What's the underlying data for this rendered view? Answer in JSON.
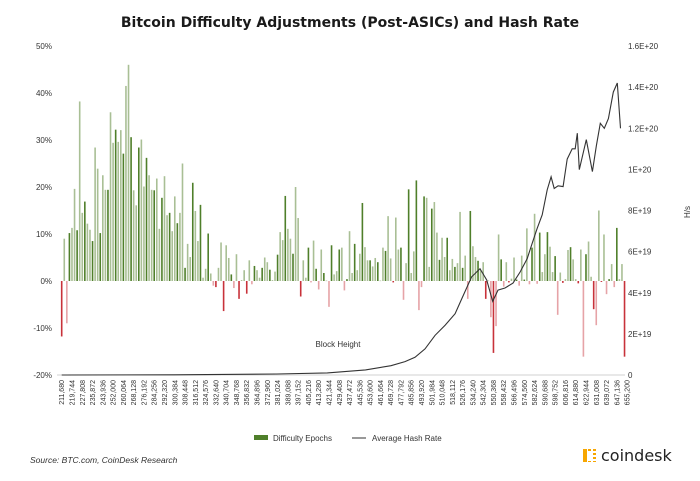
{
  "chart_data": {
    "type": "bar+line",
    "title": "Bitcoin Difficulty Adjustments (Post-ASICs) and Hash Rate",
    "xlabel": "Block Height",
    "ylabel_right": "H/s",
    "left_axis": {
      "range": [
        -20,
        50
      ],
      "unit": "%",
      "tick_labels": [
        "50%",
        "40%",
        "30%",
        "20%",
        "10%",
        "0%",
        "-10%",
        "-20%"
      ]
    },
    "right_axis": {
      "range": [
        0,
        1.6e+20
      ],
      "tick_labels": [
        "1.6E+20",
        "1.4E+20",
        "1.2E+20",
        "1E+20",
        "8E+19",
        "6E+19",
        "4E+19",
        "2E+19",
        "0"
      ]
    },
    "x_tick_labels": [
      "211,680",
      "219,744",
      "227,808",
      "235,872",
      "243,936",
      "252,000",
      "260,064",
      "268,128",
      "276,192",
      "284,256",
      "292,320",
      "300,384",
      "308,448",
      "316,512",
      "324,576",
      "332,640",
      "340,704",
      "348,768",
      "356,832",
      "364,896",
      "372,960",
      "381,024",
      "389,088",
      "397,152",
      "405,216",
      "413,280",
      "421,344",
      "429,408",
      "437,472",
      "445,536",
      "453,600",
      "461,664",
      "469,728",
      "477,792",
      "485,856",
      "493,920",
      "501,984",
      "510,048",
      "518,112",
      "526,176",
      "534,240",
      "542,304",
      "550,368",
      "558,432",
      "566,496",
      "574,560",
      "582,624",
      "590,688",
      "598,752",
      "606,816",
      "614,880",
      "622,944",
      "631,008",
      "639,072",
      "647,136",
      "655,200"
    ],
    "grid": false,
    "legend_position": "bottom",
    "colors": {
      "positive_dark": "#4f7f2a",
      "positive_light": "#a9bf95",
      "negative_dark": "#c8323a",
      "negative_light": "#e6a3a7",
      "line": "#333333"
    },
    "epoch_start_block": 211680,
    "epoch_length": 2016,
    "series": [
      {
        "name": "Difficulty Epochs",
        "type": "bar",
        "axis": "left",
        "values": [
          -11.8,
          9,
          -9,
          10.2,
          11.3,
          19.6,
          10.8,
          38.2,
          14.5,
          16.9,
          12.2,
          10.9,
          8.5,
          28.4,
          23.9,
          10.2,
          22.5,
          19.4,
          19.4,
          35.9,
          29.4,
          32.2,
          29.6,
          32.1,
          27.1,
          41.5,
          46,
          30.6,
          19.3,
          16.1,
          28.4,
          30.1,
          20.1,
          26.2,
          22.5,
          19.4,
          19.3,
          21.8,
          11.1,
          17.7,
          22.3,
          14,
          14.5,
          10.6,
          18,
          12.3,
          14.5,
          25,
          2.8,
          7.9,
          5.1,
          20.9,
          14.9,
          8.5,
          16.2,
          0.7,
          2.6,
          10.1,
          1.6,
          -1,
          -1.3,
          2.8,
          8.2,
          -6.4,
          7.6,
          4.9,
          1.4,
          -1.5,
          5.7,
          -3.8,
          0.2,
          2.3,
          -2.7,
          4.4,
          -0.7,
          3.2,
          2.3,
          0.7,
          2.8,
          5,
          4,
          2.4,
          0.2,
          2,
          5.6,
          10.4,
          8.7,
          18.1,
          11.1,
          9,
          5.8,
          20,
          13.4,
          -3.3,
          4.4,
          0.7,
          7.1,
          -0.3,
          8.6,
          2.6,
          -1.8,
          6.7,
          1.7,
          0.1,
          -5.5,
          7.6,
          1.4,
          2.1,
          6.7,
          7.1,
          -2,
          0.4,
          10.6,
          1.7,
          7.9,
          2.3,
          5.8,
          16.6,
          7.2,
          4.4,
          4.4,
          3.1,
          4.9,
          4,
          0.1,
          7.1,
          6.4,
          13.8,
          4.8,
          -0.3,
          13.5,
          6.7,
          7.1,
          -4,
          3.8,
          19.5,
          1.7,
          6.3,
          21.4,
          -6.2,
          -1.3,
          18,
          17.7,
          3,
          15.4,
          16.8,
          10.3,
          4.5,
          9.2,
          5.1,
          9.2,
          2.3,
          4.7,
          3,
          3.8,
          14.7,
          2.8,
          5.4,
          -3.8,
          14.9,
          7.4,
          5.1,
          4.3,
          2.3,
          4,
          -3.8,
          0.1,
          -7.7,
          -15.3,
          -9.6,
          9.9,
          4.6,
          -1.2,
          4,
          -0.3,
          0.5,
          5,
          0.3,
          -1,
          5.4,
          0.3,
          11.2,
          -0.7,
          7.1,
          14.3,
          -0.6,
          10.3,
          1.9,
          5.7,
          10.4,
          7.3,
          1.9,
          5.3,
          -7.2,
          1.8,
          -0.4,
          0.4,
          6.6,
          7.2,
          4.6,
          0.4,
          -0.5,
          6.7,
          -16.1,
          5.7,
          8.4,
          0.9,
          -6,
          -9.4,
          15,
          -0.2,
          9.9,
          -2.8,
          0.4,
          3.6,
          -1.3,
          11.3,
          0.4,
          3.6,
          -16.1
        ]
      },
      {
        "name": "Average Hash Rate",
        "type": "line",
        "axis": "right",
        "x": [
          211680,
          300000,
          380000,
          420000,
          450000,
          470000,
          481000,
          488860,
          496700,
          504600,
          512400,
          520300,
          525400,
          533200,
          539800,
          545100,
          549800,
          553900,
          559400,
          565700,
          571300,
          576800,
          580700,
          584600,
          588600,
          592500,
          595600,
          598000,
          601100,
          605000,
          608200,
          612100,
          614500,
          616100,
          617700,
          623200,
          628000,
          631100,
          634200,
          637300,
          640500,
          644400,
          647500,
          650000
        ],
        "y": [
          2e+16,
          1e+17,
          5e+17,
          1e+18,
          2.5e+18,
          4.5e+18,
          6.5e+18,
          8.6e+18,
          1.27e+19,
          1.93e+19,
          2.42e+19,
          2.98e+19,
          3.69e+19,
          4.77e+19,
          5.17e+19,
          4.62e+19,
          3.58e+19,
          4.13e+19,
          4.23e+19,
          4.47e+19,
          5.01e+19,
          5.66e+19,
          6.39e+19,
          7.12e+19,
          7.79e+19,
          9e+19,
          9.64e+19,
          9.07e+19,
          9.2e+19,
          9.16e+19,
          1.05e+20,
          1.1e+20,
          1.1e+20,
          1.176e+20,
          9.99e+19,
          1.145e+20,
          9.89e+19,
          1.116e+20,
          1.224e+20,
          1.2e+20,
          1.247e+20,
          1.376e+20,
          1.42e+20,
          1.2e+20
        ]
      }
    ]
  },
  "footer": {
    "source": "Source: BTC.com, CoinDesk Research",
    "brand": "coindesk",
    "brand_color": "#f7a600"
  }
}
